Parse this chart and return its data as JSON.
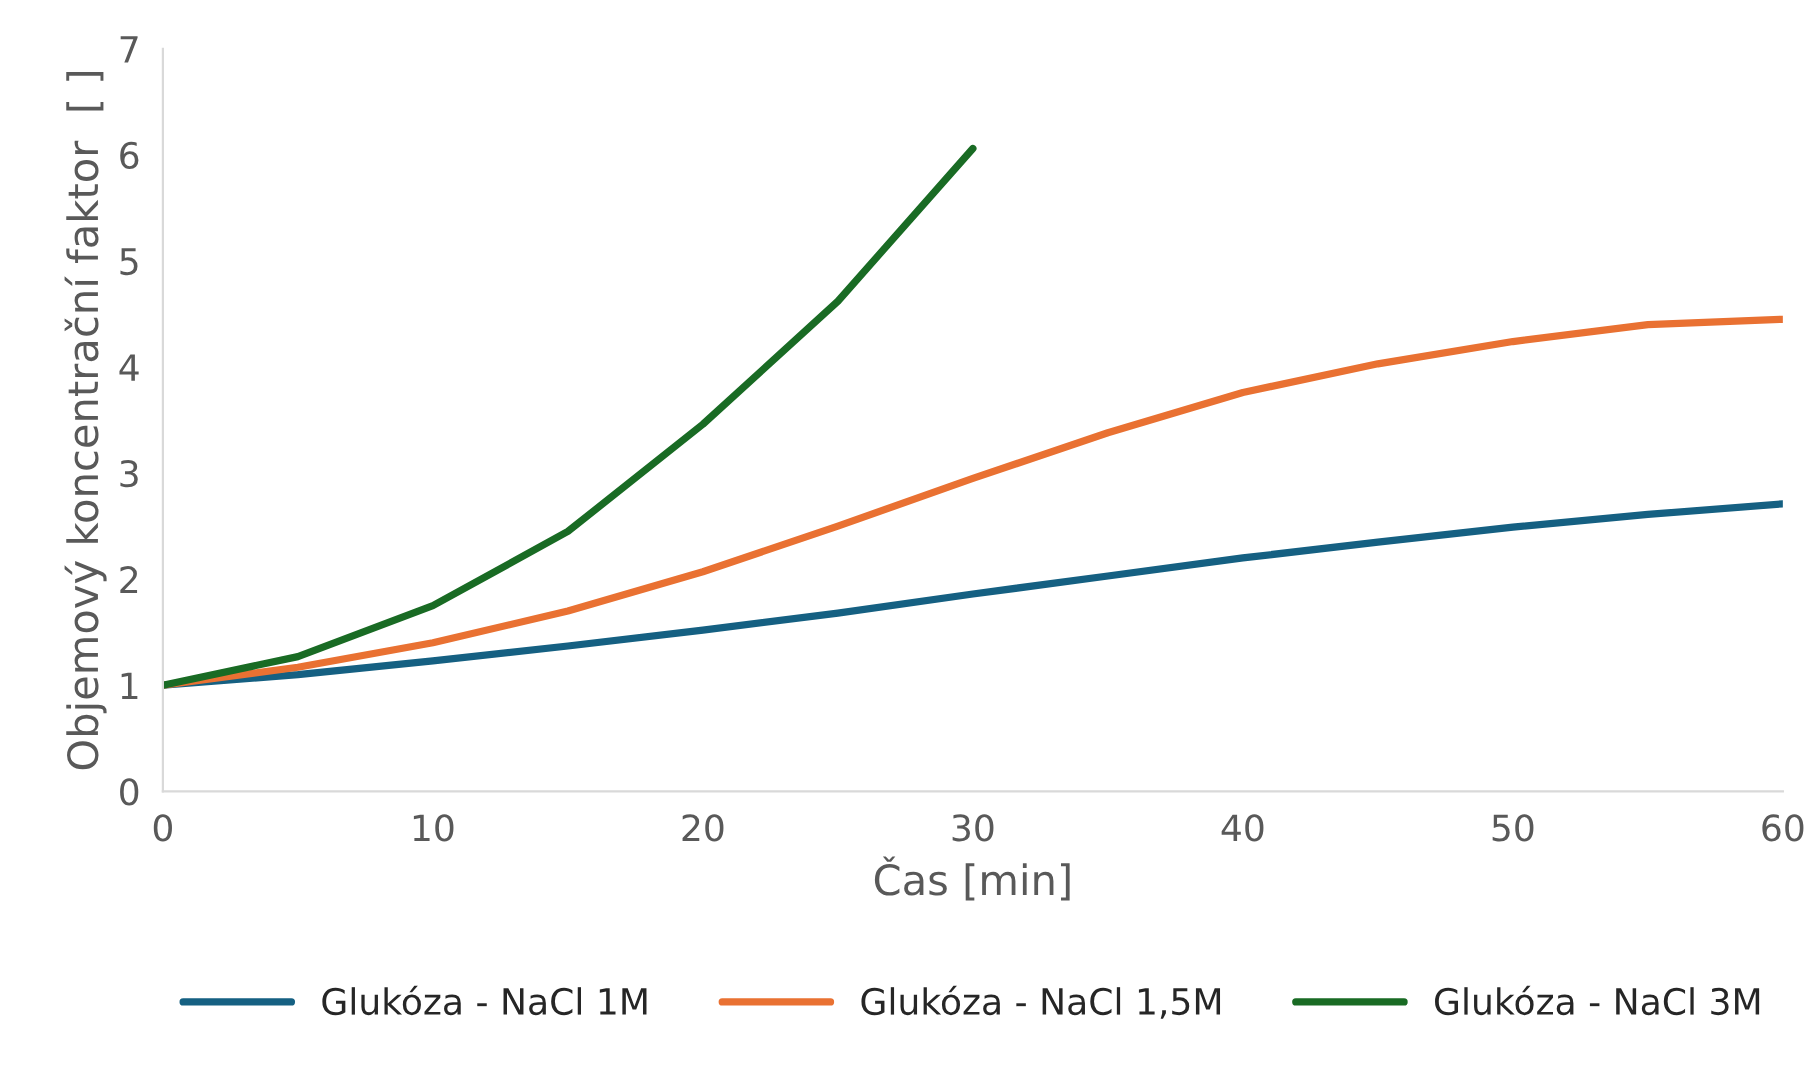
{
  "chart_data": {
    "type": "line",
    "xlabel": "Čas [min]",
    "ylabel": "Objemový koncentrační faktor  [ ]",
    "xlim": [
      0,
      60
    ],
    "xticks": [
      0,
      10,
      20,
      30,
      40,
      50,
      60
    ],
    "ylim": [
      0,
      7
    ],
    "yticks": [
      0,
      1,
      2,
      3,
      4,
      5,
      6,
      7
    ],
    "grid": false,
    "legend": "bottom",
    "marker": "none",
    "line_style": "solid",
    "series": [
      {
        "name": "Glukóza - NaCl 1M",
        "color": "#156082",
        "x": [
          0,
          5,
          10,
          15,
          20,
          25,
          30,
          35,
          40,
          45,
          50,
          55,
          60
        ],
        "values": [
          1,
          1.1,
          1.23,
          1.37,
          1.52,
          1.68,
          1.86,
          2.03,
          2.2,
          2.35,
          2.49,
          2.61,
          2.71
        ]
      },
      {
        "name": "Glukóza - NaCl 1,5M",
        "color": "#e97132",
        "x": [
          0,
          5,
          10,
          15,
          20,
          25,
          30,
          35,
          40,
          45,
          50,
          55,
          60
        ],
        "values": [
          1,
          1.17,
          1.4,
          1.7,
          2.07,
          2.5,
          2.95,
          3.38,
          3.76,
          4.03,
          4.24,
          4.4,
          4.45
        ]
      },
      {
        "name": "Glukóza - NaCl 3M",
        "color": "#196b24",
        "x": [
          0,
          5,
          10,
          15,
          20,
          25,
          30
        ],
        "values": [
          1,
          1.27,
          1.75,
          2.45,
          3.46,
          4.62,
          6.06
        ]
      }
    ]
  }
}
